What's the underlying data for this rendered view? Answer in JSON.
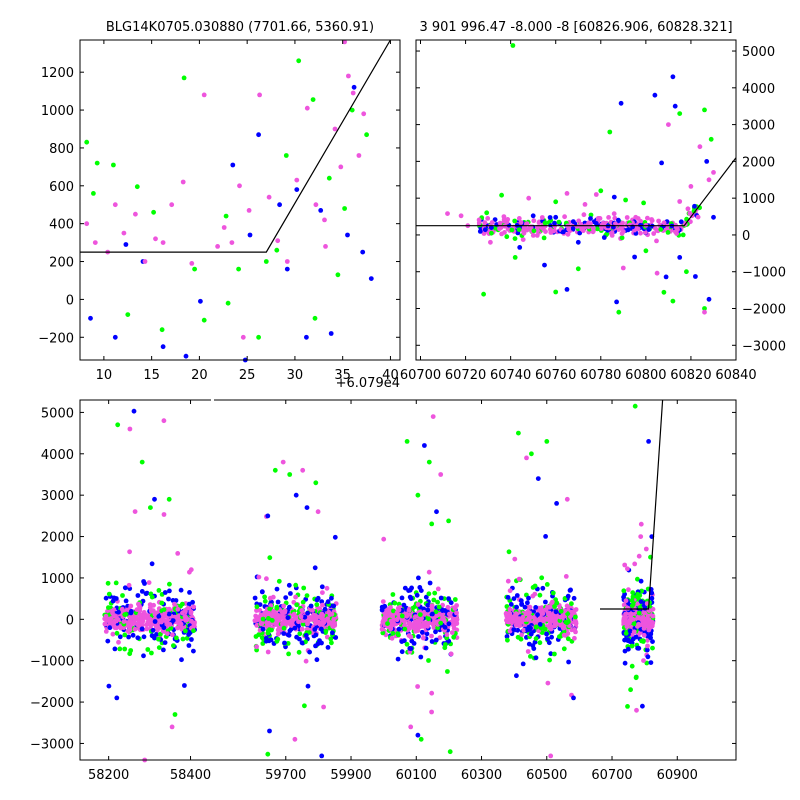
{
  "titles": {
    "left": "BLG14K0705.030880 (7701.66, 5360.91)",
    "right": "3 901 996.47 -8.000 -8 [60826.906, 60828.321]"
  },
  "offset_label": "+6.079e4",
  "colors": {
    "green": "#00ff00",
    "blue": "#0000ff",
    "pink": "#ee55dd",
    "model": "#000000"
  },
  "chart_data": [
    {
      "type": "scatter",
      "panel": "top-left",
      "title": "BLG14K0705.030880 (7701.66, 5360.91)",
      "x_offset_label": "+6.079e4",
      "xlim": [
        7.5,
        41
      ],
      "ylim": [
        -320,
        1370
      ],
      "xticks": [
        10,
        15,
        20,
        25,
        30,
        35,
        40
      ],
      "yticks": [
        -200,
        0,
        200,
        400,
        600,
        800,
        1000,
        1200
      ],
      "series": [
        {
          "color": "green",
          "points": [
            [
              8.2,
              830
            ],
            [
              8.9,
              560
            ],
            [
              9.3,
              720
            ],
            [
              11,
              710
            ],
            [
              13.5,
              595
            ],
            [
              15.2,
              460
            ],
            [
              18.4,
              1170
            ],
            [
              19.5,
              160
            ],
            [
              20.5,
              -110
            ],
            [
              23,
              -20
            ],
            [
              24.1,
              160
            ],
            [
              27,
              200
            ],
            [
              29.1,
              760
            ],
            [
              30.4,
              1260
            ],
            [
              31.9,
              1055
            ],
            [
              33.6,
              640
            ],
            [
              35.2,
              480
            ],
            [
              36,
              1000
            ],
            [
              37.5,
              870
            ],
            [
              12.5,
              -80
            ],
            [
              16.1,
              -160
            ],
            [
              22.8,
              440
            ],
            [
              28.1,
              260
            ],
            [
              34.5,
              130
            ],
            [
              26.2,
              -200
            ],
            [
              32.1,
              -100
            ]
          ]
        },
        {
          "color": "blue",
          "points": [
            [
              8.6,
              -100
            ],
            [
              11.2,
              -200
            ],
            [
              12.3,
              290
            ],
            [
              14.1,
              200
            ],
            [
              16.2,
              -250
            ],
            [
              18.6,
              -300
            ],
            [
              20.1,
              -10
            ],
            [
              23.5,
              710
            ],
            [
              25.3,
              340
            ],
            [
              26.2,
              870
            ],
            [
              28.4,
              500
            ],
            [
              29.2,
              160
            ],
            [
              30.2,
              580
            ],
            [
              32.7,
              470
            ],
            [
              33.8,
              -180
            ],
            [
              35.5,
              340
            ],
            [
              36.2,
              1120
            ],
            [
              37.1,
              250
            ],
            [
              38,
              110
            ],
            [
              31.2,
              -200
            ],
            [
              24.8,
              -320
            ]
          ]
        },
        {
          "color": "pink",
          "points": [
            [
              8.2,
              400
            ],
            [
              9.1,
              300
            ],
            [
              10.4,
              250
            ],
            [
              11.2,
              500
            ],
            [
              12.1,
              350
            ],
            [
              13.3,
              450
            ],
            [
              14.3,
              200
            ],
            [
              15.4,
              320
            ],
            [
              16.2,
              300
            ],
            [
              17.1,
              500
            ],
            [
              18.3,
              620
            ],
            [
              19.2,
              190
            ],
            [
              20.5,
              1080
            ],
            [
              22.6,
              380
            ],
            [
              23.4,
              300
            ],
            [
              24.2,
              600
            ],
            [
              25.2,
              470
            ],
            [
              26.3,
              1080
            ],
            [
              27.3,
              540
            ],
            [
              28.2,
              310
            ],
            [
              29.2,
              200
            ],
            [
              30.2,
              630
            ],
            [
              31.3,
              1010
            ],
            [
              32.2,
              500
            ],
            [
              33.1,
              420
            ],
            [
              34.2,
              900
            ],
            [
              35.2,
              1360
            ],
            [
              36.1,
              1090
            ],
            [
              37.2,
              980
            ],
            [
              35.6,
              1180
            ],
            [
              36.7,
              760
            ],
            [
              34.8,
              700
            ],
            [
              33.2,
              280
            ],
            [
              24.6,
              -200
            ],
            [
              21.9,
              280
            ]
          ]
        }
      ],
      "model": [
        [
          7.5,
          250
        ],
        [
          27,
          250
        ],
        [
          40,
          1370
        ]
      ]
    },
    {
      "type": "scatter",
      "panel": "top-right",
      "title": "3 901 996.47 -8.000 -8 [60826.906, 60828.321]",
      "xlim": [
        60698,
        60840
      ],
      "ylim": [
        -3400,
        5300
      ],
      "xticks": [
        60700,
        60720,
        60740,
        60760,
        60780,
        60800,
        60820,
        60840
      ],
      "yticks": [
        -3000,
        -2000,
        -1000,
        0,
        1000,
        2000,
        3000,
        4000,
        5000
      ],
      "yaxis_side": "right",
      "series": [
        {
          "color": "green",
          "points": [
            [
              60741,
              5150
            ],
            [
              60736,
              1080
            ],
            [
              60784,
              2800
            ],
            [
              60791,
              950
            ],
            [
              60799,
              870
            ],
            [
              60815,
              3300
            ],
            [
              60826,
              3400
            ],
            [
              60829,
              2600
            ],
            [
              60812,
              -1800
            ],
            [
              60808,
              -1560
            ],
            [
              60788,
              -2100
            ],
            [
              60760,
              -1550
            ],
            [
              60728,
              -1610
            ],
            [
              60742,
              -610
            ],
            [
              60770,
              -920
            ],
            [
              60826,
              -2000
            ],
            [
              60818,
              -1000
            ],
            [
              60800,
              -430
            ],
            [
              60780,
              1200
            ],
            [
              60760,
              900
            ]
          ]
        },
        {
          "color": "blue",
          "points": [
            [
              60812,
              4300
            ],
            [
              60804,
              3800
            ],
            [
              60789,
              3580
            ],
            [
              60813,
              3500
            ],
            [
              60827,
              2000
            ],
            [
              60807,
              1960
            ],
            [
              60786,
              1030
            ],
            [
              60765,
              -1480
            ],
            [
              60787,
              -1820
            ],
            [
              60809,
              -1140
            ],
            [
              60815,
              -610
            ],
            [
              60822,
              -1130
            ],
            [
              60828,
              -1750
            ],
            [
              60755,
              -820
            ],
            [
              60744,
              -340
            ],
            [
              60760,
              480
            ],
            [
              60830,
              480
            ],
            [
              60770,
              -200
            ],
            [
              60795,
              -600
            ],
            [
              60750,
              520
            ]
          ]
        },
        {
          "color": "pink",
          "points": [
            [
              60712,
              580
            ],
            [
              60718,
              520
            ],
            [
              60726,
              410
            ],
            [
              60748,
              1000
            ],
            [
              60765,
              1130
            ],
            [
              60778,
              1100
            ],
            [
              60810,
              3000
            ],
            [
              60824,
              2400
            ],
            [
              60828,
              1500
            ],
            [
              60830,
              1700
            ],
            [
              60820,
              1320
            ],
            [
              60826,
              -2100
            ],
            [
              60805,
              -1040
            ],
            [
              60790,
              -900
            ],
            [
              60731,
              -200
            ],
            [
              60721,
              250
            ],
            [
              60737,
              500
            ],
            [
              60773,
              830
            ],
            [
              60815,
              910
            ],
            [
              60800,
              260
            ]
          ]
        }
      ],
      "band": {
        "color": "pink",
        "x": [
          60726,
          60824
        ],
        "center": 220,
        "spread": 220
      },
      "model": [
        [
          60698,
          250
        ],
        [
          60817,
          250
        ],
        [
          60840,
          2100
        ]
      ]
    },
    {
      "type": "scatter",
      "panel": "bottom",
      "broken_x_axis": true,
      "xlim_segments": [
        [
          58130,
          58450
        ],
        [
          59480,
          61080
        ]
      ],
      "ylim": [
        -3400,
        5300
      ],
      "xticks": [
        58200,
        58400,
        59700,
        59900,
        60100,
        60300,
        60500,
        60700,
        60900
      ],
      "yticks": [
        -3000,
        -2000,
        -1000,
        0,
        1000,
        2000,
        3000,
        4000,
        5000
      ],
      "seasons": [
        [
          58190,
          58410
        ],
        [
          59605,
          59855
        ],
        [
          59995,
          60225
        ],
        [
          60375,
          60590
        ],
        [
          60735,
          60826
        ]
      ],
      "series": [
        {
          "color": "green",
          "points": [
            [
              58222,
              4700
            ],
            [
              58282,
              3800
            ],
            [
              58302,
              2700
            ],
            [
              58348,
              2900
            ],
            [
              58362,
              -2300
            ],
            [
              59668,
              3600
            ],
            [
              59712,
              3500
            ],
            [
              59792,
              3300
            ],
            [
              59820,
              -3600
            ],
            [
              60072,
              4300
            ],
            [
              60105,
              3000
            ],
            [
              60140,
              3800
            ],
            [
              60204,
              -3200
            ],
            [
              60413,
              4500
            ],
            [
              60453,
              4000
            ],
            [
              60500,
              4300
            ],
            [
              60552,
              -3500
            ],
            [
              60771,
              5150
            ],
            [
              60818,
              1500
            ],
            [
              60757,
              -1700
            ],
            [
              60115,
              -2900
            ],
            [
              59645,
              -3260
            ]
          ]
        },
        {
          "color": "blue",
          "points": [
            [
              58262,
              5030
            ],
            [
              58312,
              2900
            ],
            [
              58385,
              -1600
            ],
            [
              59645,
              2500
            ],
            [
              59732,
              3000
            ],
            [
              59765,
              2700
            ],
            [
              59810,
              -3300
            ],
            [
              60125,
              4200
            ],
            [
              60162,
              2600
            ],
            [
              60193,
              -3500
            ],
            [
              60474,
              3400
            ],
            [
              60530,
              2800
            ],
            [
              60582,
              -1900
            ],
            [
              60812,
              4300
            ],
            [
              60822,
              2000
            ],
            [
              60793,
              -2100
            ],
            [
              58220,
              -1900
            ],
            [
              60105,
              -2800
            ],
            [
              59650,
              -2700
            ]
          ]
        },
        {
          "color": "pink",
          "points": [
            [
              58252,
              4600
            ],
            [
              58335,
              4800
            ],
            [
              58402,
              1200
            ],
            [
              59692,
              3800
            ],
            [
              59752,
              3600
            ],
            [
              59799,
              2600
            ],
            [
              60152,
              4900
            ],
            [
              60175,
              3500
            ],
            [
              60438,
              3900
            ],
            [
              60563,
              2900
            ],
            [
              60788,
              2000
            ],
            [
              60805,
              1700
            ],
            [
              58355,
              -2600
            ],
            [
              59728,
              -2900
            ],
            [
              60083,
              -2600
            ],
            [
              60512,
              -3300
            ],
            [
              60775,
              -2200
            ],
            [
              58288,
              -3400
            ]
          ]
        }
      ],
      "model": [
        [
          60663,
          250
        ],
        [
          60812,
          250
        ],
        [
          60855,
          5300
        ]
      ]
    }
  ]
}
